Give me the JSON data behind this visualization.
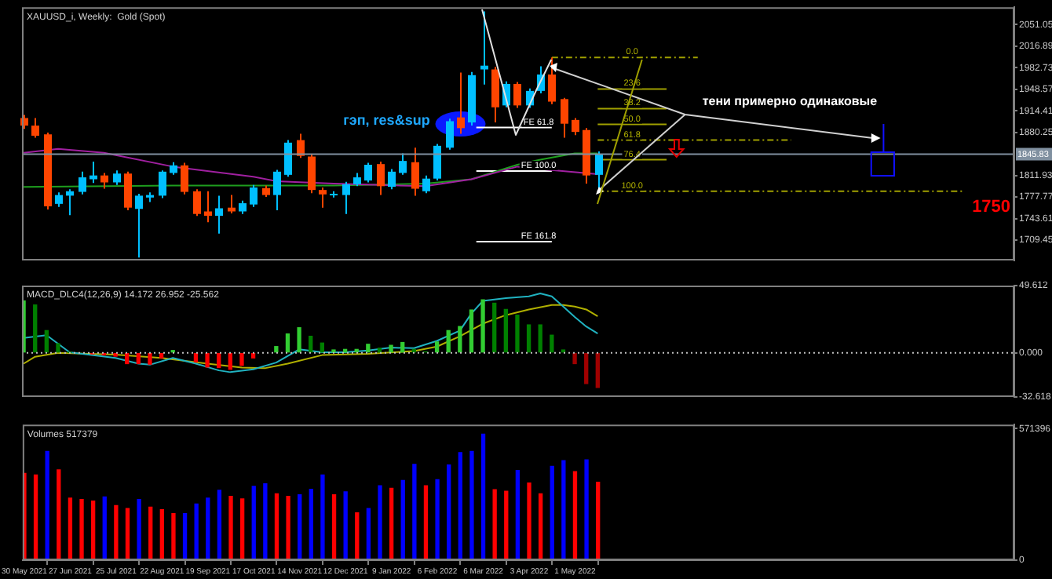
{
  "chart_data": [
    {
      "type": "candlestick",
      "title": "XAUUSD_i, Weekly:  Gold (Spot)",
      "tick_labels": "y",
      "x": [
        "2021-05-30",
        "2021-06-06",
        "2021-06-13",
        "2021-06-20",
        "2021-06-27",
        "2021-07-04",
        "2021-07-11",
        "2021-07-18",
        "2021-07-25",
        "2021-08-01",
        "2021-08-08",
        "2021-08-15",
        "2021-08-22",
        "2021-08-29",
        "2021-09-05",
        "2021-09-12",
        "2021-09-19",
        "2021-09-26",
        "2021-10-03",
        "2021-10-10",
        "2021-10-17",
        "2021-10-24",
        "2021-10-31",
        "2021-11-07",
        "2021-11-14",
        "2021-11-21",
        "2021-11-28",
        "2021-12-05",
        "2021-12-12",
        "2021-12-19",
        "2021-12-26",
        "2022-01-02",
        "2022-01-09",
        "2022-01-16",
        "2022-01-23",
        "2022-01-30",
        "2022-02-06",
        "2022-02-13",
        "2022-02-20",
        "2022-02-27",
        "2022-03-06",
        "2022-03-13",
        "2022-03-20",
        "2022-03-27",
        "2022-04-03",
        "2022-04-10",
        "2022-04-17",
        "2022-04-24",
        "2022-05-01",
        "2022-05-08",
        "2022-05-15"
      ],
      "ohlc": [
        [
          1903,
          1908,
          1886,
          1891
        ],
        [
          1891,
          1903,
          1872,
          1875
        ],
        [
          1877,
          1880,
          1758,
          1763
        ],
        [
          1767,
          1785,
          1762,
          1781
        ],
        [
          1780,
          1790,
          1749,
          1787
        ],
        [
          1786,
          1818,
          1782,
          1809
        ],
        [
          1806,
          1834,
          1800,
          1812
        ],
        [
          1812,
          1816,
          1791,
          1801
        ],
        [
          1801,
          1820,
          1797,
          1815
        ],
        [
          1815,
          1818,
          1757,
          1761
        ],
        [
          1759,
          1783,
          1682,
          1780
        ],
        [
          1777,
          1785,
          1770,
          1781
        ],
        [
          1780,
          1820,
          1776,
          1818
        ],
        [
          1816,
          1833,
          1813,
          1828
        ],
        [
          1828,
          1832,
          1782,
          1786
        ],
        [
          1787,
          1790,
          1748,
          1751
        ],
        [
          1755,
          1787,
          1738,
          1748
        ],
        [
          1748,
          1780,
          1720,
          1760
        ],
        [
          1761,
          1781,
          1752,
          1755
        ],
        [
          1755,
          1772,
          1751,
          1768
        ],
        [
          1766,
          1797,
          1762,
          1793
        ],
        [
          1792,
          1796,
          1778,
          1781
        ],
        [
          1781,
          1821,
          1757,
          1818
        ],
        [
          1813,
          1868,
          1810,
          1864
        ],
        [
          1868,
          1878,
          1840,
          1843
        ],
        [
          1842,
          1846,
          1784,
          1789
        ],
        [
          1789,
          1793,
          1761,
          1782
        ],
        [
          1781,
          1787,
          1777,
          1783
        ],
        [
          1781,
          1802,
          1751,
          1798
        ],
        [
          1798,
          1816,
          1795,
          1809
        ],
        [
          1804,
          1832,
          1801,
          1829
        ],
        [
          1830,
          1834,
          1781,
          1795
        ],
        [
          1794,
          1822,
          1790,
          1818
        ],
        [
          1816,
          1847,
          1813,
          1835
        ],
        [
          1833,
          1856,
          1780,
          1791
        ],
        [
          1787,
          1812,
          1784,
          1807
        ],
        [
          1807,
          1862,
          1804,
          1859
        ],
        [
          1856,
          1902,
          1853,
          1898
        ],
        [
          1904,
          1975,
          1878,
          1887
        ],
        [
          1896,
          1976,
          1891,
          1971
        ],
        [
          1980,
          2072,
          1956,
          1986
        ],
        [
          1980,
          1984,
          1896,
          1920
        ],
        [
          1923,
          1961,
          1920,
          1957
        ],
        [
          1957,
          1960,
          1919,
          1923
        ],
        [
          1923,
          1950,
          1919,
          1946
        ],
        [
          1946,
          1985,
          1942,
          1972
        ],
        [
          1972,
          1999,
          1925,
          1929
        ],
        [
          1933,
          1935,
          1872,
          1894
        ],
        [
          1900,
          1903,
          1876,
          1881
        ],
        [
          1884,
          1887,
          1799,
          1812
        ],
        [
          1813,
          1850,
          1787,
          1846
        ]
      ],
      "colors": [
        "#ff4500",
        "#ff4500",
        "#ff4500",
        "#00bfff",
        "#00bfff",
        "#00bfff",
        "#00bfff",
        "#ff4500",
        "#00bfff",
        "#ff4500",
        "#00bfff",
        "#00bfff",
        "#00bfff",
        "#00bfff",
        "#ff4500",
        "#ff4500",
        "#ff4500",
        "#00bfff",
        "#ff4500",
        "#00bfff",
        "#00bfff",
        "#ff4500",
        "#00bfff",
        "#00bfff",
        "#ff4500",
        "#ff4500",
        "#ff4500",
        "#00bfff",
        "#00bfff",
        "#00bfff",
        "#00bfff",
        "#ff4500",
        "#00bfff",
        "#00bfff",
        "#ff4500",
        "#00bfff",
        "#00bfff",
        "#00bfff",
        "#ff4500",
        "#00bfff",
        "#00bfff",
        "#ff4500",
        "#00bfff",
        "#ff4500",
        "#00bfff",
        "#00bfff",
        "#ff4500",
        "#ff4500",
        "#ff4500",
        "#ff4500",
        "#00bfff"
      ],
      "series": [
        {
          "type": "line",
          "color": "#a020a0",
          "x": [
            "2021-05-30",
            "2021-06-20",
            "2021-07-18",
            "2021-08-29",
            "2021-10-17",
            "2021-10-31",
            "2021-12-05",
            "2022-01-30",
            "2022-02-27",
            "2022-03-27",
            "2022-04-10",
            "2022-05-15"
          ],
          "values": [
            1848,
            1854,
            1848,
            1826,
            1810,
            1803,
            1799,
            1795,
            1806,
            1826,
            1822,
            1814
          ]
        },
        {
          "type": "line",
          "color": "#1e9e1e",
          "x": [
            "2021-05-30",
            "2021-08-29",
            "2021-12-05",
            "2022-01-30",
            "2022-02-27",
            "2022-03-27",
            "2022-04-10",
            "2022-05-01",
            "2022-05-15"
          ],
          "values": [
            1794,
            1796,
            1796,
            1799,
            1806,
            1829,
            1837,
            1847,
            1847
          ]
        },
        {
          "type": "line",
          "color": "#a0a000",
          "line_style": "dashed",
          "x": [
            "2022-04-17",
            "2022-07-15"
          ],
          "values": [
            1999,
            1999
          ]
        },
        {
          "type": "line",
          "color": "#a0a000",
          "x": [
            "2022-05-15",
            "2022-06-26"
          ],
          "values": [
            1949,
            1949
          ]
        },
        {
          "type": "line",
          "color": "#a0a000",
          "x": [
            "2022-05-15",
            "2022-06-26"
          ],
          "values": [
            1918,
            1918
          ]
        },
        {
          "type": "line",
          "color": "#a0a000",
          "x": [
            "2022-05-15",
            "2022-06-26"
          ],
          "values": [
            1893,
            1893
          ]
        },
        {
          "type": "line",
          "color": "#a0a000",
          "line_style": "dashed",
          "x": [
            "2022-05-15",
            "2022-09-10"
          ],
          "values": [
            1868,
            1868
          ]
        },
        {
          "type": "line",
          "color": "#a0a000",
          "x": [
            "2022-05-15",
            "2022-06-26"
          ],
          "values": [
            1837,
            1837
          ]
        },
        {
          "type": "line",
          "color": "#a0a000",
          "line_style": "dashed",
          "x": [
            "2022-05-15",
            "2022-12-25"
          ],
          "values": [
            1787,
            1787
          ]
        },
        {
          "type": "line",
          "color": "#ffffff",
          "x": [
            "2022-03-02",
            "2022-04-17"
          ],
          "values": [
            1888,
            1888
          ]
        },
        {
          "type": "line",
          "color": "#ffffff",
          "x": [
            "2022-03-02",
            "2022-04-17"
          ],
          "values": [
            1819,
            1819
          ]
        },
        {
          "type": "line",
          "color": "#ffffff",
          "x": [
            "2022-03-02",
            "2022-04-17"
          ],
          "values": [
            1707,
            1707
          ]
        }
      ],
      "xlim": [
        "2021-05-29",
        "2023-01-24"
      ],
      "ylim": [
        1677.3,
        2078.6
      ],
      "yticks": [
        2051.05,
        2016.89,
        1982.73,
        1948.57,
        1914.41,
        1880.25,
        1811.93,
        1777.77,
        1743.61,
        1709.45
      ],
      "ref_lines": [
        {
          "axis": "y",
          "value": 1845.83,
          "label": "1845.83",
          "color": "#8090a0"
        }
      ],
      "annotations": [
        "гэп, res&sup",
        "тени примерно одинаковые",
        "1750",
        {
          "text": "0.0",
          "x": "2022-06-05",
          "y": 1999
        },
        {
          "text": "23.6",
          "x": "2022-06-05",
          "y": 1949
        },
        {
          "text": "38.2",
          "x": "2022-06-05",
          "y": 1918
        },
        {
          "text": "50.0",
          "x": "2022-06-05",
          "y": 1893
        },
        {
          "text": "61.8",
          "x": "2022-06-05",
          "y": 1868
        },
        {
          "text": "76.4",
          "x": "2022-06-05",
          "y": 1837
        },
        {
          "text": "100.0",
          "x": "2022-06-05",
          "y": 1787
        },
        {
          "text": "FE 61.8",
          "x": "2022-04-09",
          "y": 1888
        },
        {
          "text": "FE 100.0",
          "x": "2022-04-09",
          "y": 1819
        },
        {
          "text": "FE 161.8",
          "x": "2022-04-09",
          "y": 1707
        }
      ]
    },
    {
      "type": "bar",
      "title": "MACD_DLC4(12,26,9) 14.172 26.952 -25.562",
      "tick_labels": "y",
      "x": [
        "2021-05-30",
        "2021-06-06",
        "2021-06-13",
        "2021-06-20",
        "2021-06-27",
        "2021-07-04",
        "2021-07-11",
        "2021-07-18",
        "2021-07-25",
        "2021-08-01",
        "2021-08-08",
        "2021-08-15",
        "2021-08-22",
        "2021-08-29",
        "2021-09-05",
        "2021-09-12",
        "2021-09-19",
        "2021-09-26",
        "2021-10-03",
        "2021-10-10",
        "2021-10-17",
        "2021-10-24",
        "2021-10-31",
        "2021-11-07",
        "2021-11-14",
        "2021-11-21",
        "2021-11-28",
        "2021-12-05",
        "2021-12-12",
        "2021-12-19",
        "2021-12-26",
        "2022-01-02",
        "2022-01-09",
        "2022-01-16",
        "2022-01-23",
        "2022-01-30",
        "2022-02-06",
        "2022-02-13",
        "2022-02-20",
        "2022-02-27",
        "2022-03-06",
        "2022-03-13",
        "2022-03-20",
        "2022-03-27",
        "2022-04-03",
        "2022-04-10",
        "2022-04-17",
        "2022-04-24",
        "2022-05-01",
        "2022-05-08",
        "2022-05-15"
      ],
      "series": [
        {
          "values": [
            38.3,
            35.3,
            16.4,
            6.7,
            0.3,
            null,
            -0.8,
            -1.5,
            -2.5,
            -8,
            -8,
            -8.4,
            -3.8,
            1.7,
            null,
            -6.7,
            -10.5,
            -10.9,
            -12.2,
            -9.3,
            -3.8,
            null,
            4.6,
            13.9,
            18.5,
            12.2,
            7.2,
            2.1,
            2.5,
            2.5,
            6.3,
            3.4,
            5.5,
            7.6,
            2.5,
            0.8,
            8,
            16.4,
            19.4,
            31.6,
            39.1,
            36.6,
            32,
            27.8,
            20.6,
            20.6,
            13,
            2.1,
            -8,
            -22.7,
            -25.6
          ],
          "colors": [
            "#32cd32",
            "#008000",
            "#008000",
            "#008000",
            "#008000",
            "#ff0000",
            "#ff0000",
            "#ff0000",
            "#ff0000",
            "#ff0000",
            "#ff0000",
            "#ff0000",
            "#ff0000",
            "#32cd32",
            "#ff0000",
            "#ff0000",
            "#ff0000",
            "#ff0000",
            "#ff0000",
            "#ff0000",
            "#ff0000",
            "#ff0000",
            "#32cd32",
            "#32cd32",
            "#32cd32",
            "#008000",
            "#008000",
            "#32cd32",
            "#32cd32",
            "#32cd32",
            "#32cd32",
            "#008000",
            "#32cd32",
            "#32cd32",
            "#008000",
            "#008000",
            "#32cd32",
            "#32cd32",
            "#32cd32",
            "#32cd32",
            "#32cd32",
            "#008000",
            "#008000",
            "#008000",
            "#008000",
            "#008000",
            "#008000",
            "#008000",
            "#a00000",
            "#a00000",
            "#a00000"
          ]
        },
        {
          "type": "line",
          "color": "#20b2c0",
          "x": [
            "2021-05-30",
            "2021-06-13",
            "2021-06-27",
            "2021-07-25",
            "2021-08-08",
            "2021-08-15",
            "2021-08-29",
            "2021-09-12",
            "2021-09-26",
            "2021-10-03",
            "2021-10-17",
            "2021-10-31",
            "2021-11-14",
            "2021-11-28",
            "2021-12-12",
            "2021-12-26",
            "2022-01-09",
            "2022-01-23",
            "2022-02-06",
            "2022-02-20",
            "2022-02-27",
            "2022-03-06",
            "2022-03-20",
            "2022-04-03",
            "2022-04-10",
            "2022-04-17",
            "2022-04-24",
            "2022-05-01",
            "2022-05-08",
            "2022-05-15"
          ],
          "values": [
            10.9,
            13,
            0.4,
            -3.8,
            -8,
            -8.8,
            -3.8,
            -8,
            -13,
            -14.3,
            -12.2,
            -7.2,
            2.5,
            0.4,
            0.4,
            1.7,
            3.8,
            3.4,
            8.8,
            16.4,
            29,
            38.3,
            40.4,
            41.6,
            43.8,
            41.6,
            34.1,
            26.5,
            19.4,
            14.2
          ]
        },
        {
          "type": "line",
          "color": "#b0b000",
          "x": [
            "2021-05-30",
            "2021-06-06",
            "2021-06-20",
            "2021-07-25",
            "2021-08-22",
            "2021-09-19",
            "2021-10-10",
            "2021-10-24",
            "2021-11-07",
            "2021-11-28",
            "2021-12-26",
            "2022-01-23",
            "2022-02-06",
            "2022-02-20",
            "2022-03-06",
            "2022-03-20",
            "2022-04-03",
            "2022-04-17",
            "2022-04-24",
            "2022-05-01",
            "2022-05-08",
            "2022-05-15"
          ],
          "values": [
            -8,
            -2.9,
            0,
            -1.3,
            -3.8,
            -8,
            -10.9,
            -11.4,
            -8,
            -1.7,
            -0.8,
            1.3,
            4.6,
            12.2,
            21.5,
            27.8,
            32,
            35.3,
            35.3,
            34.1,
            32,
            27.0
          ]
        }
      ],
      "xlim": [
        "2021-05-29",
        "2023-01-24"
      ],
      "ylim": [
        -32.618,
        49.612
      ],
      "yticks": [
        49.612,
        {
          "value": 0,
          "label": "0.000"
        },
        -32.618
      ],
      "ref_lines": [
        {
          "axis": "y",
          "value": 0,
          "color": "#c0c0c0",
          "line_style": "dotted"
        }
      ]
    },
    {
      "type": "bar",
      "title": "Volumes 517379",
      "x": [
        "2021-05-30",
        "2021-06-06",
        "2021-06-13",
        "2021-06-20",
        "2021-06-27",
        "2021-07-04",
        "2021-07-11",
        "2021-07-18",
        "2021-07-25",
        "2021-08-01",
        "2021-08-08",
        "2021-08-15",
        "2021-08-22",
        "2021-08-29",
        "2021-09-05",
        "2021-09-12",
        "2021-09-19",
        "2021-09-26",
        "2021-10-03",
        "2021-10-10",
        "2021-10-17",
        "2021-10-24",
        "2021-10-31",
        "2021-11-07",
        "2021-11-14",
        "2021-11-21",
        "2021-11-28",
        "2021-12-05",
        "2021-12-12",
        "2021-12-19",
        "2021-12-26",
        "2022-01-02",
        "2022-01-09",
        "2022-01-16",
        "2022-01-23",
        "2022-01-30",
        "2022-02-06",
        "2022-02-13",
        "2022-02-20",
        "2022-02-27",
        "2022-03-06",
        "2022-03-13",
        "2022-03-20",
        "2022-03-27",
        "2022-04-03",
        "2022-04-10",
        "2022-04-17",
        "2022-04-24",
        "2022-05-01",
        "2022-05-08",
        "2022-05-15"
      ],
      "values": [
        377000,
        370000,
        472000,
        392000,
        270000,
        264000,
        257000,
        275000,
        237000,
        224000,
        264000,
        230000,
        219000,
        202000,
        202000,
        244000,
        270000,
        304000,
        277000,
        266000,
        321000,
        332000,
        288000,
        277000,
        284000,
        308000,
        370000,
        284000,
        297000,
        206000,
        224000,
        323000,
        312000,
        346000,
        416000,
        323000,
        350000,
        414000,
        467000,
        472000,
        547000,
        306000,
        299000,
        390000,
        335000,
        288000,
        408000,
        432000,
        385000,
        436000,
        339000
      ],
      "colors": [
        "#ff0000",
        "#ff0000",
        "#0000ff",
        "#ff0000",
        "#ff0000",
        "#ff0000",
        "#ff0000",
        "#0000ff",
        "#ff0000",
        "#ff0000",
        "#0000ff",
        "#ff0000",
        "#ff0000",
        "#ff0000",
        "#0000ff",
        "#0000ff",
        "#0000ff",
        "#0000ff",
        "#ff0000",
        "#ff0000",
        "#0000ff",
        "#0000ff",
        "#ff0000",
        "#ff0000",
        "#0000ff",
        "#0000ff",
        "#0000ff",
        "#ff0000",
        "#0000ff",
        "#ff0000",
        "#0000ff",
        "#0000ff",
        "#ff0000",
        "#0000ff",
        "#0000ff",
        "#ff0000",
        "#0000ff",
        "#0000ff",
        "#0000ff",
        "#0000ff",
        "#0000ff",
        "#ff0000",
        "#ff0000",
        "#0000ff",
        "#ff0000",
        "#ff0000",
        "#0000ff",
        "#0000ff",
        "#ff0000",
        "#0000ff",
        "#ff0000"
      ],
      "xlim": [
        "2021-05-29",
        "2023-01-24"
      ],
      "xticks": [
        {
          "value": "2021-05-30",
          "label": "30 May 2021"
        },
        {
          "value": "2021-06-27",
          "label": "27 Jun 2021"
        },
        {
          "value": "2021-07-25",
          "label": "25 Jul 2021"
        },
        {
          "value": "2021-08-22",
          "label": "22 Aug 2021"
        },
        {
          "value": "2021-09-19",
          "label": "19 Sep 2021"
        },
        {
          "value": "2021-10-17",
          "label": "17 Oct 2021"
        },
        {
          "value": "2021-11-14",
          "label": "14 Nov 2021"
        },
        {
          "value": "2021-12-12",
          "label": "12 Dec 2021"
        },
        {
          "value": "2022-01-09",
          "label": "9 Jan 2022"
        },
        {
          "value": "2022-02-06",
          "label": "6 Feb 2022"
        },
        {
          "value": "2022-03-06",
          "label": "6 Mar 2022"
        },
        {
          "value": "2022-04-03",
          "label": "3 Apr 2022"
        },
        {
          "value": "2022-05-01",
          "label": "1 May 2022"
        }
      ],
      "ylim": [
        0,
        589000
      ],
      "yticks": [
        571396,
        0
      ]
    }
  ]
}
